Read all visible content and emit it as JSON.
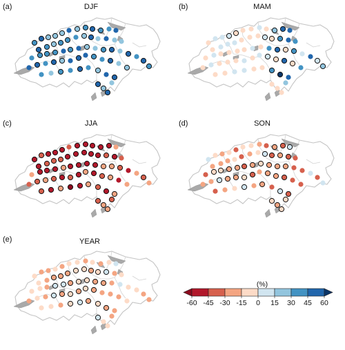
{
  "figure": {
    "panels": [
      {
        "label": "(a)",
        "season": "DJF"
      },
      {
        "label": "(b)",
        "season": "MAM"
      },
      {
        "label": "(c)",
        "season": "JJA"
      },
      {
        "label": "(d)",
        "season": "SON"
      },
      {
        "label": "(e)",
        "season": "YEAR"
      }
    ],
    "colorbar": {
      "unit": "(%)",
      "ticks": [
        "-60",
        "-45",
        "-30",
        "-15",
        "0",
        "15",
        "30",
        "45",
        "60"
      ],
      "colors": [
        "#b2182b",
        "#d6604d",
        "#f4a582",
        "#fddbc7",
        "#d1e5f0",
        "#92c5de",
        "#4393c3",
        "#2166ac"
      ],
      "extend_low": "#8b0a1e",
      "extend_high": "#0b3567"
    }
  },
  "chart_data": {
    "type": "map-scatter",
    "description_key": "station-wise percentage change per season",
    "colorbar_range": [
      -60,
      60
    ],
    "bin_edges": [
      -60,
      -45,
      -30,
      -15,
      0,
      15,
      30,
      45,
      60
    ],
    "panels": [
      {
        "season": "DJF",
        "dominant_sign": "positive",
        "typical_range": [
          15,
          60
        ]
      },
      {
        "season": "MAM",
        "dominant_sign": "mixed",
        "typical_range": [
          -15,
          60
        ]
      },
      {
        "season": "JJA",
        "dominant_sign": "negative",
        "typical_range": [
          -60,
          -15
        ]
      },
      {
        "season": "SON",
        "dominant_sign": "negative",
        "typical_range": [
          -45,
          0
        ]
      },
      {
        "season": "YEAR",
        "dominant_sign": "mixed",
        "typical_range": [
          -30,
          15
        ]
      }
    ]
  }
}
